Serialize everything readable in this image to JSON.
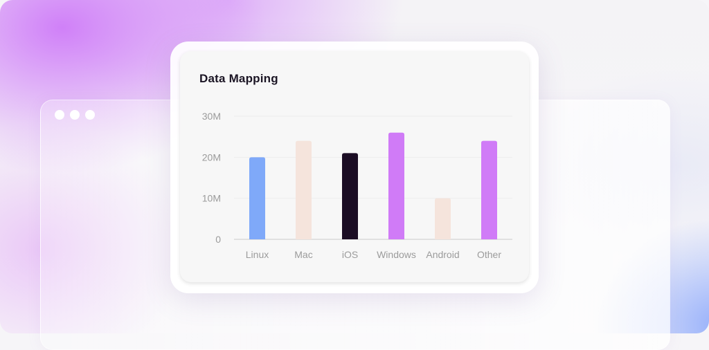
{
  "colors": {
    "linux": "#7fa9f9",
    "light": "#f5e4dc",
    "dark": "#1b0d24",
    "purple": "#d07bf7"
  },
  "window": {
    "controls": [
      "dot",
      "dot",
      "dot"
    ]
  },
  "chart_data": {
    "type": "bar",
    "title": "Data Mapping",
    "categories": [
      "Linux",
      "Mac",
      "iOS",
      "Windows",
      "Android",
      "Other"
    ],
    "values": [
      20,
      24,
      21,
      26,
      10,
      24
    ],
    "bar_colors": [
      "#7fa9f9",
      "#f5e4dc",
      "#1b0d24",
      "#d07bf7",
      "#f5e4dc",
      "#d07bf7"
    ],
    "ylim": [
      0,
      30
    ],
    "yticks": [
      0,
      10,
      20,
      30
    ],
    "ytick_labels": [
      "0",
      "10M",
      "20M",
      "30M"
    ],
    "unit": "M",
    "grid": true,
    "xlabel": "",
    "ylabel": ""
  }
}
